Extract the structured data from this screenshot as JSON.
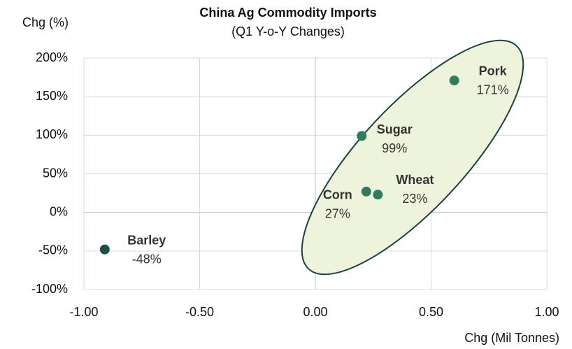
{
  "chart_data": {
    "type": "scatter",
    "title": "China Ag Commodity Imports",
    "subtitle": "(Q1 Y-o-Y Changes)",
    "y_label": "Chg (%)",
    "x_label": "Chg (Mil Tonnes)",
    "point_labels": [
      "Barley",
      "Pork",
      "Sugar",
      "Wheat",
      "Corn"
    ],
    "x": [
      -0.91,
      0.6,
      0.2,
      0.27,
      0.22
    ],
    "values": [
      -48,
      171,
      99,
      23,
      27
    ],
    "value_labels": [
      "-48%",
      "171%",
      "99%",
      "23%",
      "27%"
    ],
    "colors": [
      "#1d4f48",
      "#2f7c5e",
      "#2f7c5e",
      "#2f7c5e",
      "#2f7c5e"
    ],
    "xlim": [
      -1,
      1
    ],
    "xticks": [
      {
        "value": -1,
        "label": "-1.00"
      },
      {
        "value": -0.5,
        "label": "-0.50"
      },
      {
        "value": 0,
        "label": "0.00"
      },
      {
        "value": 0.5,
        "label": "0.50"
      },
      {
        "value": 1,
        "label": "1.00"
      }
    ],
    "ylim": [
      -100,
      200
    ],
    "yticks": [
      {
        "value": -100,
        "label": "-100%"
      },
      {
        "value": -50,
        "label": "-50%"
      },
      {
        "value": 0,
        "label": "0%"
      },
      {
        "value": 50,
        "label": "50%"
      },
      {
        "value": 100,
        "label": "100%"
      },
      {
        "value": 150,
        "label": "150%"
      },
      {
        "value": 200,
        "label": "200%"
      }
    ],
    "grid": true
  }
}
